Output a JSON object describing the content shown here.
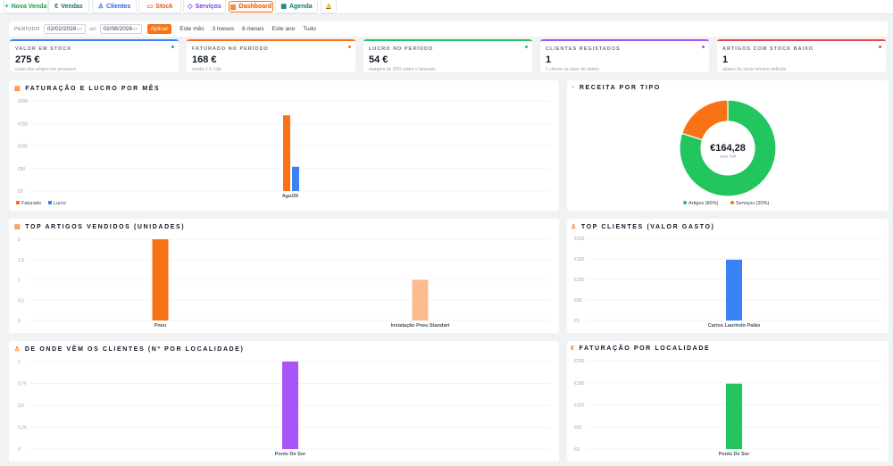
{
  "nav": {
    "tabs": [
      {
        "label": "Nova Venda",
        "icon": "plus-icon",
        "color": "#16a34a"
      },
      {
        "label": "Vendas",
        "icon": "euro-icon",
        "color": "#0f766e"
      },
      {
        "label": "Clientes",
        "icon": "user-icon",
        "color": "#2563eb"
      },
      {
        "label": "Stock",
        "icon": "box-icon",
        "color": "#ea580c"
      },
      {
        "label": "Serviços",
        "icon": "tag-icon",
        "color": "#7c3aed"
      },
      {
        "label": "Dashboard",
        "icon": "chart-icon",
        "color": "#ea580c"
      },
      {
        "label": "Agenda",
        "icon": "calendar-icon",
        "color": "#0f766e"
      }
    ],
    "bell_icon": "bell-icon",
    "active": "Dashboard"
  },
  "filter": {
    "label": "PERÍODO",
    "from": "02/02/2026",
    "to_label": "até",
    "to": "02/08/2026",
    "apply": "Aplicar",
    "quick": [
      "Este mês",
      "3 meses",
      "6 meses",
      "Este ano",
      "Tudo"
    ]
  },
  "kpis": [
    {
      "title": "VALOR EM STOCK",
      "value": "275 €",
      "sub": "custo dos artigos em armazém",
      "color": "#3b82f6"
    },
    {
      "title": "FATURADO NO PERÍODO",
      "value": "168 €",
      "sub": "média 1 € / dia",
      "color": "#f97316"
    },
    {
      "title": "LUCRO NO PERÍODO",
      "value": "54 €",
      "sub": "margem de 32% sobre o faturado",
      "color": "#22c55e"
    },
    {
      "title": "CLIENTES REGISTADOS",
      "value": "1",
      "sub": "1 cliente na base de dados",
      "color": "#a855f7"
    },
    {
      "title": "ARTIGOS COM STOCK BAIXO",
      "value": "1",
      "sub": "abaixo do stock mínimo definido",
      "color": "#ef4444"
    }
  ],
  "cards": {
    "revenue": {
      "title": "FATURAÇÃO E LUCRO POR MÊS",
      "icon": "bar-chart-icon"
    },
    "types": {
      "title": "RECEITA POR TIPO",
      "icon": "pie-icon",
      "center_value": "€164,28",
      "center_sub": "sem IVA"
    },
    "top_articles": {
      "title": "TOP ARTIGOS VENDIDOS (UNIDADES)",
      "icon": "box-icon"
    },
    "top_clients": {
      "title": "TOP CLIENTES (VALOR GASTO)",
      "icon": "user-icon"
    },
    "origin": {
      "title": "DE ONDE VÊM OS CLIENTES (Nº POR LOCALIDADE)",
      "icon": "user-icon"
    },
    "by_locality": {
      "title": "FATURAÇÃO POR LOCALIDADE",
      "icon": "euro-icon"
    }
  },
  "chart_data": [
    {
      "type": "bar",
      "categories": [
        "Ago/26"
      ],
      "series": [
        {
          "name": "Faturado",
          "values": [
            168
          ],
          "color": "#f97316"
        },
        {
          "name": "Lucro",
          "values": [
            54
          ],
          "color": "#3b82f6"
        }
      ],
      "yticks": [
        "€0",
        "€50",
        "€100",
        "€150",
        "€200"
      ],
      "ylim": [
        0,
        200
      ],
      "legend": "bottom-left"
    },
    {
      "type": "pie",
      "categories": [
        "Artigos (80%)",
        "Serviços (20%)"
      ],
      "values": [
        80,
        20
      ],
      "colors": [
        "#22c55e",
        "#f97316"
      ],
      "legend": "bottom"
    },
    {
      "type": "bar",
      "categories": [
        "Pneu",
        "Instalação Pneu Standart"
      ],
      "values": [
        2,
        1
      ],
      "colors": [
        "#f97316",
        "#fdba8c"
      ],
      "yticks": [
        "0",
        "0,5",
        "1",
        "1,5",
        "2"
      ],
      "ylim": [
        0,
        2
      ]
    },
    {
      "type": "bar",
      "categories": [
        "Carlos Laurindo Paião"
      ],
      "values": [
        148
      ],
      "colors": [
        "#3b82f6"
      ],
      "yticks": [
        "€0",
        "€50",
        "€100",
        "€150",
        "€200"
      ],
      "ylim": [
        0,
        200
      ]
    },
    {
      "type": "bar",
      "categories": [
        "Ponte De Sor"
      ],
      "values": [
        1
      ],
      "colors": [
        "#a855f7"
      ],
      "yticks": [
        "0",
        "0,25",
        "0,5",
        "0,75",
        "1"
      ],
      "ylim": [
        0,
        1
      ]
    },
    {
      "type": "bar",
      "categories": [
        "Ponte De Sor"
      ],
      "values": [
        148
      ],
      "colors": [
        "#22c55e"
      ],
      "yticks": [
        "€0",
        "€50",
        "€100",
        "€150",
        "€200"
      ],
      "ylim": [
        0,
        200
      ]
    }
  ]
}
